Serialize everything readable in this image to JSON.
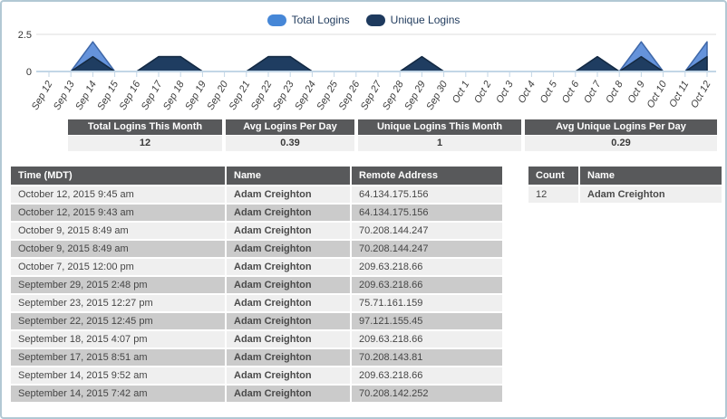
{
  "page": {
    "border_color": "#b2c8d4"
  },
  "chart": {
    "legend": [
      {
        "label": "Total Logins",
        "color": "#4687d7"
      },
      {
        "label": "Unique Logins",
        "color": "#1e3a5e"
      }
    ]
  },
  "chart_data": {
    "type": "area",
    "x": [
      "Sep 12",
      "Sep 13",
      "Sep 14",
      "Sep 15",
      "Sep 16",
      "Sep 17",
      "Sep 18",
      "Sep 19",
      "Sep 20",
      "Sep 21",
      "Sep 22",
      "Sep 23",
      "Sep 24",
      "Sep 25",
      "Sep 26",
      "Sep 27",
      "Sep 28",
      "Sep 29",
      "Sep 30",
      "Oct 1",
      "Oct 2",
      "Oct 3",
      "Oct 4",
      "Oct 5",
      "Oct 6",
      "Oct 7",
      "Oct 8",
      "Oct 9",
      "Oct 10",
      "Oct 11",
      "Oct 12"
    ],
    "series": [
      {
        "name": "Total Logins",
        "fill": "#6593db",
        "stroke": "#3e67a8",
        "values": [
          0,
          0,
          2,
          0,
          0,
          1,
          1,
          0,
          0,
          0,
          1,
          1,
          0,
          0,
          0,
          0,
          0,
          1,
          0,
          0,
          0,
          0,
          0,
          0,
          0,
          1,
          0,
          2,
          0,
          0,
          2
        ]
      },
      {
        "name": "Unique Logins",
        "fill": "#1f3d61",
        "stroke": "#152a42",
        "values": [
          0,
          0,
          1,
          0,
          0,
          1,
          1,
          0,
          0,
          0,
          1,
          1,
          0,
          0,
          0,
          0,
          0,
          1,
          0,
          0,
          0,
          0,
          0,
          0,
          0,
          1,
          0,
          1,
          0,
          0,
          1
        ]
      }
    ],
    "ylim": [
      0,
      2.5
    ],
    "ytick_labels": [
      "0",
      "2.5"
    ],
    "grid": "y-top-only",
    "legend_position": "top-center",
    "axis_color": "#c2d6e6",
    "grid_color": "#dcdcdc",
    "tick_label_color": "#3d3d3d"
  },
  "stats": [
    {
      "label": "Total Logins This Month",
      "value": "12"
    },
    {
      "label": "Avg Logins Per Day",
      "value": "0.39"
    },
    {
      "label": "Unique Logins This Month",
      "value": "1"
    },
    {
      "label": "Avg Unique Logins Per Day",
      "value": "0.29"
    }
  ],
  "login_table": {
    "columns": [
      "Time (MDT)",
      "Name",
      "Remote Address"
    ],
    "rows": [
      [
        "October 12, 2015 9:45 am",
        "Adam Creighton",
        "64.134.175.156"
      ],
      [
        "October 12, 2015 9:43 am",
        "Adam Creighton",
        "64.134.175.156"
      ],
      [
        "October 9, 2015 8:49 am",
        "Adam Creighton",
        "70.208.144.247"
      ],
      [
        "October 9, 2015 8:49 am",
        "Adam Creighton",
        "70.208.144.247"
      ],
      [
        "October 7, 2015 12:00 pm",
        "Adam Creighton",
        "209.63.218.66"
      ],
      [
        "September 29, 2015 2:48 pm",
        "Adam Creighton",
        "209.63.218.66"
      ],
      [
        "September 23, 2015 12:27 pm",
        "Adam Creighton",
        "75.71.161.159"
      ],
      [
        "September 22, 2015 12:45 pm",
        "Adam Creighton",
        "97.121.155.45"
      ],
      [
        "September 18, 2015 4:07 pm",
        "Adam Creighton",
        "209.63.218.66"
      ],
      [
        "September 17, 2015 8:51 am",
        "Adam Creighton",
        "70.208.143.81"
      ],
      [
        "September 14, 2015 9:52 am",
        "Adam Creighton",
        "209.63.218.66"
      ],
      [
        "September 14, 2015 7:42 am",
        "Adam Creighton",
        "70.208.142.252"
      ]
    ]
  },
  "count_table": {
    "columns": [
      "Count",
      "Name"
    ],
    "rows": [
      [
        "12",
        "Adam Creighton"
      ]
    ]
  }
}
